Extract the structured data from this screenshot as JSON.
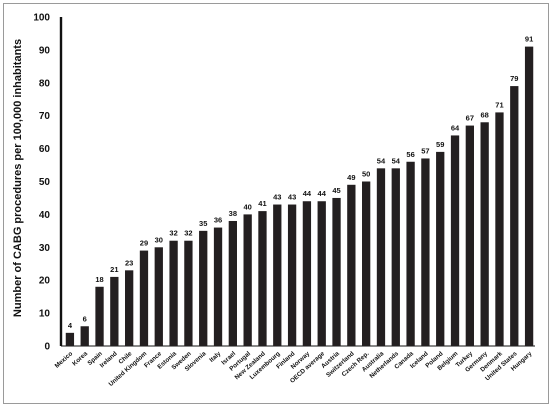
{
  "chart_data": {
    "type": "bar",
    "title": "",
    "xlabel": "",
    "ylabel": "Number of CABG procedures per 100,000 inhabitants",
    "ylim": [
      0,
      100
    ],
    "yticks": [
      0,
      10,
      20,
      30,
      40,
      50,
      60,
      70,
      80,
      90,
      100
    ],
    "grid": false,
    "legend": "none",
    "bar_color": "#231f20",
    "categories": [
      "Mexico",
      "Korea",
      "Spain",
      "Ireland",
      "Chile",
      "United Kingdom",
      "France",
      "Estonia",
      "Sweden",
      "Slovenia",
      "Italy",
      "Israel",
      "Portugal",
      "New Zealand",
      "Luxembourg",
      "Finland",
      "Norway",
      "OECD average",
      "Austria",
      "Switzerland",
      "Czech Rep.",
      "Australia",
      "Netherlands",
      "Canada",
      "Iceland",
      "Poland",
      "Belgium",
      "Turkey",
      "Germany",
      "Denmark",
      "United States",
      "Hungary"
    ],
    "values": [
      4,
      6,
      18,
      21,
      23,
      29,
      30,
      32,
      32,
      35,
      36,
      38,
      40,
      41,
      43,
      43,
      44,
      44,
      45,
      49,
      50,
      54,
      54,
      56,
      57,
      59,
      64,
      67,
      68,
      71,
      79,
      91
    ]
  }
}
